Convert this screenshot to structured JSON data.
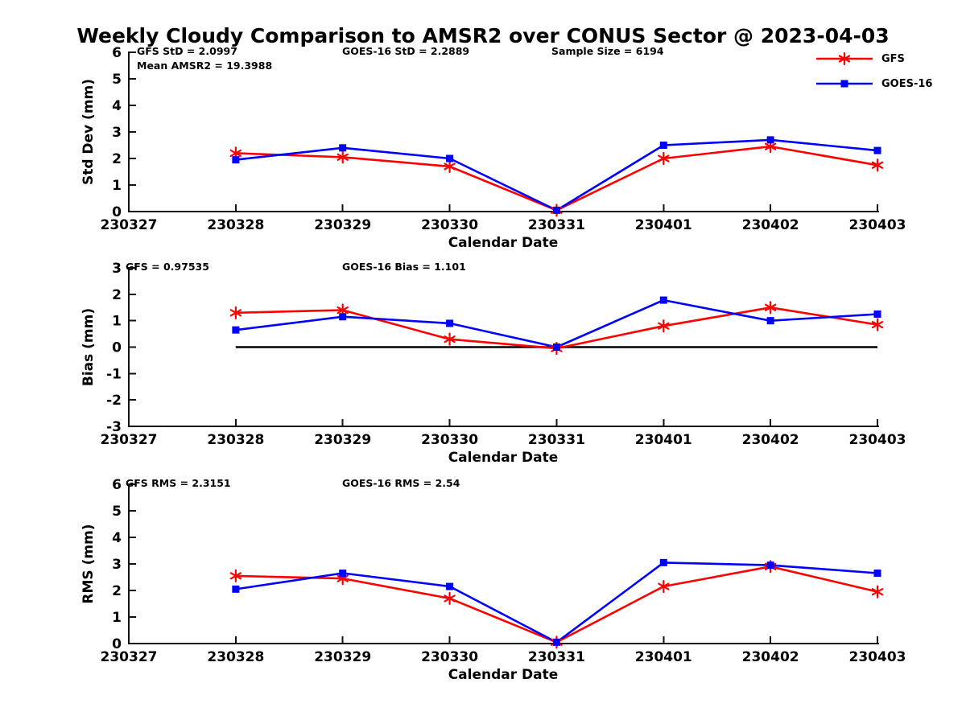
{
  "title": "Weekly Cloudy Comparison to AMSR2 over CONUS Sector @ 2023-04-03",
  "legend": {
    "items": [
      {
        "label": "GFS",
        "color": "#ff0000",
        "marker": "asterisk"
      },
      {
        "label": "GOES-16",
        "color": "#0000ff",
        "marker": "square"
      }
    ]
  },
  "axis_color": "#111111",
  "chart_data": [
    {
      "id": "std-dev",
      "type": "line",
      "xlabel": "Calendar Date",
      "ylabel": "Std Dev (mm)",
      "ylim": [
        0,
        6
      ],
      "yticks": [
        0,
        1,
        2,
        3,
        4,
        5,
        6
      ],
      "grid": false,
      "legend_position": "top-right-outside",
      "categories": [
        "230327",
        "230328",
        "230329",
        "230330",
        "230331",
        "230401",
        "230402",
        "230403"
      ],
      "series": [
        {
          "name": "GFS",
          "color": "#ff0000",
          "marker": "asterisk",
          "values": [
            null,
            2.2,
            2.05,
            1.7,
            0.05,
            2.0,
            2.45,
            1.75
          ]
        },
        {
          "name": "GOES-16",
          "color": "#0000ff",
          "marker": "square",
          "values": [
            null,
            1.95,
            2.4,
            2.0,
            0.05,
            2.5,
            2.7,
            2.3
          ]
        }
      ],
      "annotations": [
        {
          "text": "GFS StD = 2.0997",
          "col": 0,
          "row": 0
        },
        {
          "text": "Mean AMSR2 = 19.3988",
          "col": 0,
          "row": 1
        },
        {
          "text": "GOES-16 StD = 2.2889",
          "col": 1,
          "row": 0
        },
        {
          "text": "Sample Size = 6194",
          "col": 2,
          "row": 0
        }
      ]
    },
    {
      "id": "bias",
      "type": "line",
      "xlabel": "Calendar Date",
      "ylabel": "Bias (mm)",
      "ylim": [
        -3,
        3
      ],
      "yticks": [
        -3,
        -2,
        -1,
        0,
        1,
        2,
        3
      ],
      "grid": false,
      "zero_line": {
        "value": 0,
        "from": "230328",
        "to": "230403",
        "color": "#000000"
      },
      "categories": [
        "230327",
        "230328",
        "230329",
        "230330",
        "230331",
        "230401",
        "230402",
        "230403"
      ],
      "series": [
        {
          "name": "GFS",
          "color": "#ff0000",
          "marker": "asterisk",
          "values": [
            null,
            1.3,
            1.4,
            0.3,
            -0.05,
            0.8,
            1.5,
            0.85
          ]
        },
        {
          "name": "GOES-16",
          "color": "#0000ff",
          "marker": "square",
          "values": [
            null,
            0.65,
            1.15,
            0.9,
            0.0,
            1.78,
            1.0,
            1.25
          ]
        }
      ],
      "annotations": [
        {
          "text": "GFS = 0.97535",
          "col": 0,
          "row": 0
        },
        {
          "text": "GOES-16 Bias = 1.101",
          "col": 1,
          "row": 0
        }
      ]
    },
    {
      "id": "rms",
      "type": "line",
      "xlabel": "Calendar Date",
      "ylabel": "RMS (mm)",
      "ylim": [
        0,
        6
      ],
      "yticks": [
        0,
        1,
        2,
        3,
        4,
        5,
        6
      ],
      "grid": false,
      "categories": [
        "230327",
        "230328",
        "230329",
        "230330",
        "230331",
        "230401",
        "230402",
        "230403"
      ],
      "series": [
        {
          "name": "GFS",
          "color": "#ff0000",
          "marker": "asterisk",
          "values": [
            null,
            2.55,
            2.45,
            1.7,
            0.05,
            2.15,
            2.9,
            1.95
          ]
        },
        {
          "name": "GOES-16",
          "color": "#0000ff",
          "marker": "square",
          "values": [
            null,
            2.05,
            2.65,
            2.15,
            0.05,
            3.05,
            2.95,
            2.65
          ]
        }
      ],
      "annotations": [
        {
          "text": "GFS RMS = 2.3151",
          "col": 0,
          "row": 0
        },
        {
          "text": "GOES-16 RMS = 2.54",
          "col": 1,
          "row": 0
        }
      ]
    }
  ]
}
